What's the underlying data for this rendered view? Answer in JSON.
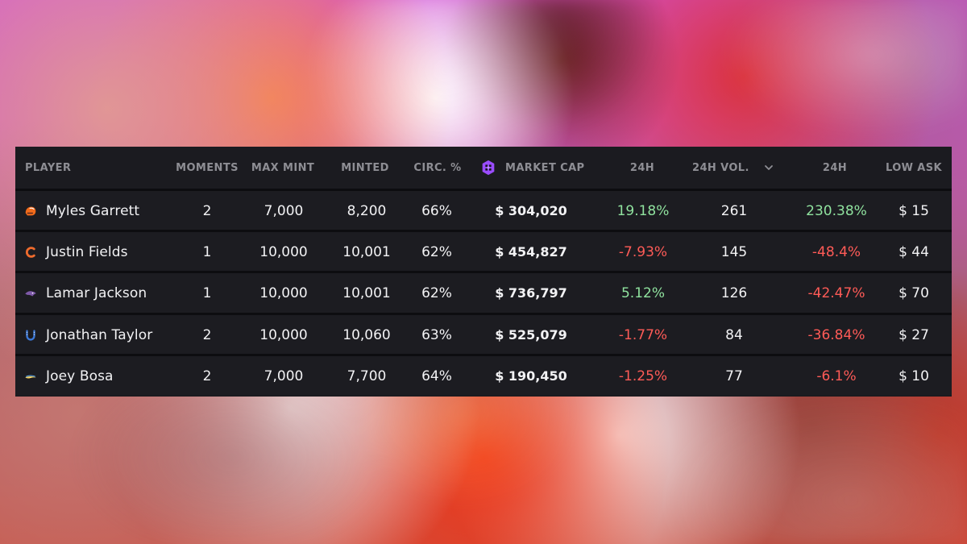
{
  "table": {
    "headers": {
      "player": "PLAYER",
      "moments": "MOMENTS",
      "max_mint": "MAX MINT",
      "minted": "MINTED",
      "circ": "CIRC. %",
      "market_cap": "MARKET CAP",
      "change_24h": "24H",
      "vol_24h": "24H VOL.",
      "vol_change_24h": "24H",
      "low_ask": "LOW ASK"
    },
    "icons": {
      "market_cap_icon": "market-cap-icon",
      "sort_icon": "chevron-down-icon"
    },
    "rows": [
      {
        "team_icon": "browns-helmet-icon",
        "player": "Myles Garrett",
        "moments": "2",
        "max_mint": "7,000",
        "minted": "8,200",
        "circ": "66%",
        "market_cap": "$ 304,020",
        "change_24h": "19.18%",
        "vol_24h": "261",
        "vol_change_24h": "230.38%",
        "low_ask": "$ 15"
      },
      {
        "team_icon": "bears-logo-icon",
        "player": "Justin Fields",
        "moments": "1",
        "max_mint": "10,000",
        "minted": "10,001",
        "circ": "62%",
        "market_cap": "$ 454,827",
        "change_24h": "-7.93%",
        "vol_24h": "145",
        "vol_change_24h": "-48.4%",
        "low_ask": "$ 44"
      },
      {
        "team_icon": "ravens-logo-icon",
        "player": "Lamar Jackson",
        "moments": "1",
        "max_mint": "10,000",
        "minted": "10,001",
        "circ": "62%",
        "market_cap": "$ 736,797",
        "change_24h": "5.12%",
        "vol_24h": "126",
        "vol_change_24h": "-42.47%",
        "low_ask": "$ 70"
      },
      {
        "team_icon": "colts-horseshoe-icon",
        "player": "Jonathan Taylor",
        "moments": "2",
        "max_mint": "10,000",
        "minted": "10,060",
        "circ": "63%",
        "market_cap": "$ 525,079",
        "change_24h": "-1.77%",
        "vol_24h": "84",
        "vol_change_24h": "-36.84%",
        "low_ask": "$ 27"
      },
      {
        "team_icon": "chargers-bolt-icon",
        "player": "Joey Bosa",
        "moments": "2",
        "max_mint": "7,000",
        "minted": "7,700",
        "circ": "64%",
        "market_cap": "$ 190,450",
        "change_24h": "-1.25%",
        "vol_24h": "77",
        "vol_change_24h": "-6.1%",
        "low_ask": "$ 10"
      }
    ]
  },
  "colors": {
    "positive": "#90e39f",
    "negative": "#ff5b57",
    "brand_purple": "#9a4cff"
  }
}
